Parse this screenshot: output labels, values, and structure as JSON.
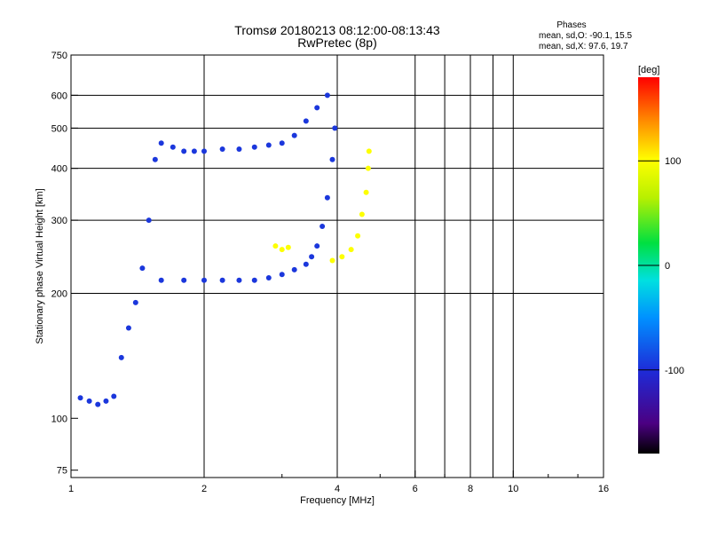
{
  "chart_data": {
    "type": "scatter",
    "title": "Tromsø 20180213 08:12:00-08:13:43",
    "subtitle": "RwPretec (8p)",
    "stats": {
      "header": "Phases",
      "line_o": "mean, sd,O: -90.1, 15.5",
      "line_x": "mean, sd,X:  97.6, 19.7"
    },
    "xlabel": "Frequency [MHz]",
    "ylabel": "Stationary phase Virtual Height [km]",
    "x_scale": "log",
    "y_scale": "log",
    "xlim": [
      1,
      16
    ],
    "ylim": [
      72,
      750
    ],
    "x_ticks": [
      "1",
      "2",
      "4",
      "6",
      "8",
      "10",
      "16"
    ],
    "y_ticks": [
      "75",
      "100",
      "200",
      "300",
      "400",
      "500",
      "600",
      "750"
    ],
    "grid_x": [
      2,
      4,
      6,
      7,
      8,
      9,
      10
    ],
    "grid_y": [
      200,
      300,
      400,
      500,
      600
    ],
    "colorbar": {
      "label": "[deg]",
      "range": [
        -180,
        180
      ],
      "ticks": [
        "100",
        "0",
        "-100"
      ]
    },
    "grid": true,
    "series": [
      {
        "mode": "O",
        "color_phase": -95,
        "points": [
          [
            1.05,
            112
          ],
          [
            1.1,
            110
          ],
          [
            1.15,
            108
          ],
          [
            1.2,
            110
          ],
          [
            1.25,
            113
          ],
          [
            1.3,
            140
          ],
          [
            1.35,
            165
          ],
          [
            1.4,
            190
          ],
          [
            1.45,
            230
          ],
          [
            1.5,
            300
          ],
          [
            1.55,
            420
          ],
          [
            1.6,
            460
          ],
          [
            1.7,
            450
          ],
          [
            1.8,
            440
          ],
          [
            1.9,
            440
          ],
          [
            2.0,
            440
          ],
          [
            2.2,
            445
          ],
          [
            2.4,
            445
          ],
          [
            2.6,
            450
          ],
          [
            2.8,
            455
          ],
          [
            3.0,
            460
          ],
          [
            3.2,
            480
          ],
          [
            3.4,
            520
          ],
          [
            3.6,
            560
          ],
          [
            3.8,
            600
          ],
          [
            1.6,
            215
          ],
          [
            1.8,
            215
          ],
          [
            2.0,
            215
          ],
          [
            2.2,
            215
          ],
          [
            2.4,
            215
          ],
          [
            2.6,
            215
          ],
          [
            2.8,
            218
          ],
          [
            3.0,
            222
          ],
          [
            3.2,
            228
          ],
          [
            3.4,
            235
          ],
          [
            3.5,
            245
          ],
          [
            3.6,
            260
          ],
          [
            3.7,
            290
          ],
          [
            3.8,
            340
          ],
          [
            3.9,
            420
          ],
          [
            3.95,
            500
          ]
        ]
      },
      {
        "mode": "X",
        "color_phase": 100,
        "points": [
          [
            2.9,
            260
          ],
          [
            3.0,
            255
          ],
          [
            3.1,
            258
          ],
          [
            3.9,
            240
          ],
          [
            4.1,
            245
          ],
          [
            4.3,
            255
          ],
          [
            4.45,
            275
          ],
          [
            4.55,
            310
          ],
          [
            4.65,
            350
          ],
          [
            4.7,
            400
          ],
          [
            4.72,
            440
          ]
        ]
      }
    ]
  }
}
